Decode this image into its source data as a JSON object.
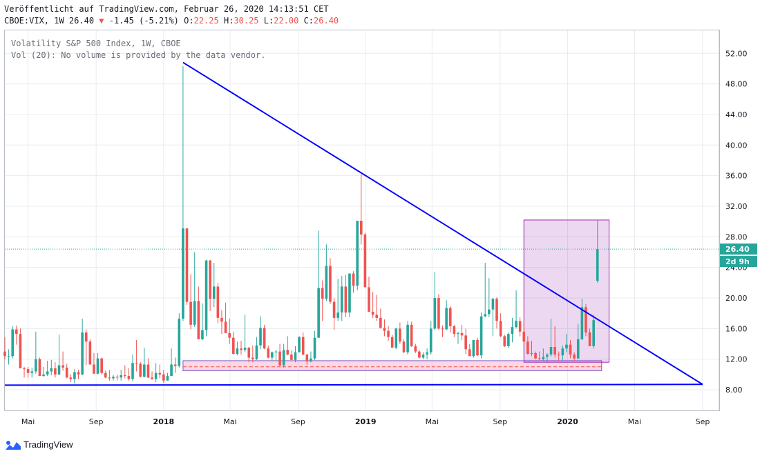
{
  "header": {
    "published": "Veröffentlicht auf TradingView.com, Februar 26, 2020 14:13:51 CET",
    "symbol_line": "CBOE:VIX, 1W 26.40",
    "change": "-1.45 (-5.21%)",
    "ohlc": {
      "o_label": "O:",
      "o": "22.25",
      "h_label": "H:",
      "h": "30.25",
      "l_label": "L:",
      "l": "22.00",
      "c_label": "C:",
      "c": "26.40"
    }
  },
  "legend": {
    "line1": "Volatility S&P 500 Index, 1W, CBOE",
    "line2": "Vol (20): No volume is provided by the data vendor."
  },
  "price_badge": "26.40",
  "time_badge": "2d 9h",
  "footer": {
    "brand": "TradingView"
  },
  "colors": {
    "up": "#26a69a",
    "down": "#ef5350",
    "trendline": "#0000ff",
    "box": "#9c27b0",
    "support": "#f48fb1",
    "grid": "#e8ecf0"
  },
  "chart_data": {
    "type": "candlestick",
    "timeframe": "1W",
    "y_ticks": [
      8,
      12,
      16,
      20,
      24,
      28,
      32,
      36,
      40,
      44,
      48,
      52
    ],
    "y_tick_labels": [
      "8.00",
      "12.00",
      "16.00",
      "20.00",
      "24.00",
      "28.00",
      "32.00",
      "36.00",
      "40.00",
      "44.00",
      "48.00",
      "52.00"
    ],
    "ylim": [
      5.3,
      55
    ],
    "xlim": [
      "2017-03-20",
      "2020-10-01"
    ],
    "x_ticks": [
      {
        "date": "2017-05-01",
        "label": "Mai"
      },
      {
        "date": "2017-09-01",
        "label": "Sep"
      },
      {
        "date": "2018-01-01",
        "label": "2018"
      },
      {
        "date": "2018-05-01",
        "label": "Mai"
      },
      {
        "date": "2018-09-01",
        "label": "Sep"
      },
      {
        "date": "2019-01-01",
        "label": "2019"
      },
      {
        "date": "2019-05-01",
        "label": "Mai"
      },
      {
        "date": "2019-09-01",
        "label": "Sep"
      },
      {
        "date": "2020-01-01",
        "label": "2020"
      },
      {
        "date": "2020-05-01",
        "label": "Mai"
      },
      {
        "date": "2020-09-01",
        "label": "Sep"
      }
    ],
    "last_price": 26.4,
    "candles": [
      [
        "2017-03-20",
        13.0,
        14.9,
        12.0,
        12.4
      ],
      [
        "2017-03-27",
        12.4,
        13.3,
        11.3,
        12.4
      ],
      [
        "2017-04-03",
        12.4,
        16.3,
        12.1,
        15.9
      ],
      [
        "2017-04-10",
        15.9,
        16.4,
        13.9,
        15.3
      ],
      [
        "2017-04-17",
        15.3,
        16.0,
        10.8,
        10.8
      ],
      [
        "2017-04-24",
        10.8,
        11.0,
        9.6,
        10.7
      ],
      [
        "2017-05-01",
        10.7,
        11.0,
        9.6,
        10.2
      ],
      [
        "2017-05-08",
        10.2,
        10.9,
        9.6,
        10.4
      ],
      [
        "2017-05-15",
        10.4,
        15.6,
        10.1,
        12.0
      ],
      [
        "2017-05-22",
        12.0,
        12.2,
        9.8,
        9.8
      ],
      [
        "2017-05-29",
        9.8,
        11.0,
        9.7,
        10.0
      ],
      [
        "2017-06-05",
        10.0,
        11.8,
        9.8,
        10.4
      ],
      [
        "2017-06-12",
        10.4,
        11.9,
        9.9,
        10.8
      ],
      [
        "2017-06-19",
        10.8,
        11.6,
        9.6,
        10.0
      ],
      [
        "2017-06-26",
        10.0,
        15.2,
        9.9,
        11.2
      ],
      [
        "2017-07-03",
        11.2,
        13.0,
        10.5,
        10.9
      ],
      [
        "2017-07-10",
        10.9,
        11.4,
        9.5,
        9.6
      ],
      [
        "2017-07-17",
        9.6,
        10.0,
        9.0,
        9.4
      ],
      [
        "2017-07-24",
        9.4,
        10.7,
        8.8,
        10.3
      ],
      [
        "2017-07-31",
        10.3,
        10.6,
        9.4,
        10.0
      ],
      [
        "2017-08-07",
        10.0,
        17.3,
        9.9,
        15.5
      ],
      [
        "2017-08-14",
        15.5,
        15.9,
        11.2,
        14.3
      ],
      [
        "2017-08-21",
        14.3,
        14.6,
        11.3,
        11.3
      ],
      [
        "2017-08-28",
        11.3,
        12.8,
        10.1,
        10.1
      ],
      [
        "2017-09-04",
        10.1,
        12.8,
        10.0,
        12.1
      ],
      [
        "2017-09-11",
        12.1,
        12.2,
        10.0,
        10.2
      ],
      [
        "2017-09-18",
        10.2,
        10.5,
        9.5,
        9.6
      ],
      [
        "2017-09-25",
        9.6,
        10.6,
        9.2,
        9.5
      ],
      [
        "2017-10-02",
        9.5,
        9.9,
        9.2,
        9.7
      ],
      [
        "2017-10-09",
        9.7,
        10.0,
        9.2,
        9.6
      ],
      [
        "2017-10-16",
        9.6,
        10.6,
        9.2,
        9.9
      ],
      [
        "2017-10-23",
        9.9,
        11.2,
        9.5,
        9.8
      ],
      [
        "2017-10-30",
        9.8,
        10.8,
        9.2,
        9.4
      ],
      [
        "2017-11-06",
        9.4,
        12.6,
        9.1,
        11.5
      ],
      [
        "2017-11-13",
        11.5,
        14.5,
        10.4,
        11.4
      ],
      [
        "2017-11-20",
        11.4,
        11.6,
        9.6,
        9.7
      ],
      [
        "2017-11-27",
        9.7,
        13.5,
        9.6,
        11.3
      ],
      [
        "2017-12-04",
        11.3,
        12.1,
        9.5,
        9.6
      ],
      [
        "2017-12-11",
        9.6,
        10.4,
        9.3,
        9.4
      ],
      [
        "2017-12-18",
        9.4,
        11.5,
        9.0,
        10.2
      ],
      [
        "2017-12-25",
        10.2,
        11.3,
        9.5,
        10.0
      ],
      [
        "2018-01-01",
        10.0,
        10.6,
        8.9,
        9.2
      ],
      [
        "2018-01-08",
        9.2,
        10.2,
        9.2,
        9.8
      ],
      [
        "2018-01-15",
        9.8,
        13.4,
        9.8,
        11.3
      ],
      [
        "2018-01-22",
        11.3,
        12.2,
        10.2,
        11.1
      ],
      [
        "2018-01-29",
        11.1,
        18.0,
        10.9,
        17.3
      ],
      [
        "2018-02-05",
        17.3,
        50.3,
        17.0,
        29.1
      ],
      [
        "2018-02-12",
        29.1,
        29.1,
        19.1,
        19.5
      ],
      [
        "2018-02-19",
        19.5,
        23.1,
        15.9,
        16.5
      ],
      [
        "2018-02-26",
        16.5,
        26.0,
        16.2,
        19.6
      ],
      [
        "2018-03-05",
        19.6,
        21.5,
        14.6,
        14.6
      ],
      [
        "2018-03-12",
        14.6,
        19.3,
        14.5,
        15.8
      ],
      [
        "2018-03-19",
        15.8,
        25.0,
        15.0,
        24.9
      ],
      [
        "2018-03-26",
        24.9,
        25.0,
        18.3,
        19.9
      ],
      [
        "2018-04-02",
        19.9,
        24.6,
        18.8,
        21.5
      ],
      [
        "2018-04-09",
        21.5,
        22.0,
        16.7,
        17.4
      ],
      [
        "2018-04-16",
        17.4,
        18.4,
        15.3,
        16.9
      ],
      [
        "2018-04-23",
        16.9,
        19.4,
        15.4,
        15.4
      ],
      [
        "2018-04-30",
        15.4,
        17.3,
        14.0,
        14.8
      ],
      [
        "2018-05-07",
        14.8,
        15.6,
        12.6,
        12.7
      ],
      [
        "2018-05-14",
        12.7,
        14.3,
        12.5,
        13.4
      ],
      [
        "2018-05-21",
        13.4,
        14.4,
        12.6,
        13.2
      ],
      [
        "2018-05-28",
        13.2,
        17.8,
        12.9,
        13.5
      ],
      [
        "2018-06-04",
        13.5,
        13.6,
        11.6,
        12.2
      ],
      [
        "2018-06-11",
        12.2,
        13.8,
        11.6,
        12.0
      ],
      [
        "2018-06-18",
        12.0,
        14.9,
        11.9,
        13.8
      ],
      [
        "2018-06-25",
        13.8,
        17.6,
        13.3,
        16.1
      ],
      [
        "2018-07-02",
        16.1,
        16.5,
        13.3,
        13.4
      ],
      [
        "2018-07-09",
        13.4,
        13.8,
        12.1,
        12.2
      ],
      [
        "2018-07-16",
        12.2,
        13.0,
        11.8,
        12.9
      ],
      [
        "2018-07-23",
        12.9,
        13.2,
        11.8,
        13.0
      ],
      [
        "2018-07-30",
        13.0,
        14.0,
        11.0,
        11.2
      ],
      [
        "2018-08-06",
        11.2,
        14.0,
        10.9,
        13.2
      ],
      [
        "2018-08-13",
        13.2,
        15.0,
        12.5,
        12.6
      ],
      [
        "2018-08-20",
        12.6,
        13.1,
        11.9,
        11.9
      ],
      [
        "2018-08-27",
        11.9,
        13.7,
        11.6,
        12.9
      ],
      [
        "2018-09-03",
        12.9,
        15.0,
        12.9,
        14.9
      ],
      [
        "2018-09-10",
        14.9,
        15.5,
        12.5,
        12.6
      ],
      [
        "2018-09-17",
        12.6,
        12.7,
        11.3,
        11.7
      ],
      [
        "2018-09-24",
        11.7,
        13.0,
        11.6,
        12.1
      ],
      [
        "2018-10-01",
        12.1,
        15.7,
        11.9,
        14.8
      ],
      [
        "2018-10-08",
        14.8,
        28.8,
        14.8,
        21.3
      ],
      [
        "2018-10-15",
        21.3,
        22.3,
        17.0,
        19.9
      ],
      [
        "2018-10-22",
        19.9,
        27.0,
        19.6,
        24.2
      ],
      [
        "2018-10-29",
        24.2,
        25.2,
        19.2,
        19.5
      ],
      [
        "2018-11-05",
        19.5,
        20.0,
        15.8,
        17.4
      ],
      [
        "2018-11-12",
        17.4,
        22.5,
        17.0,
        18.1
      ],
      [
        "2018-11-19",
        18.1,
        22.9,
        17.0,
        21.5
      ],
      [
        "2018-11-26",
        21.5,
        23.0,
        17.5,
        18.1
      ],
      [
        "2018-12-03",
        18.1,
        23.2,
        17.5,
        23.2
      ],
      [
        "2018-12-10",
        23.2,
        23.5,
        20.7,
        21.6
      ],
      [
        "2018-12-17",
        21.6,
        30.1,
        21.0,
        30.1
      ],
      [
        "2018-12-24",
        30.1,
        36.2,
        27.0,
        28.3
      ],
      [
        "2018-12-31",
        28.3,
        28.5,
        21.4,
        21.4
      ],
      [
        "2019-01-07",
        21.4,
        22.8,
        18.2,
        18.2
      ],
      [
        "2019-01-14",
        18.2,
        20.8,
        17.4,
        17.8
      ],
      [
        "2019-01-21",
        17.8,
        20.4,
        17.0,
        17.4
      ],
      [
        "2019-01-28",
        17.4,
        18.6,
        16.0,
        16.1
      ],
      [
        "2019-02-04",
        16.1,
        17.2,
        15.0,
        15.7
      ],
      [
        "2019-02-11",
        15.7,
        16.3,
        14.4,
        14.9
      ],
      [
        "2019-02-18",
        14.9,
        15.2,
        13.5,
        13.5
      ],
      [
        "2019-02-25",
        13.5,
        16.1,
        13.3,
        16.0
      ],
      [
        "2019-03-04",
        16.0,
        16.8,
        14.0,
        14.3
      ],
      [
        "2019-03-11",
        14.3,
        14.6,
        12.8,
        12.9
      ],
      [
        "2019-03-18",
        12.9,
        17.0,
        12.6,
        16.5
      ],
      [
        "2019-03-25",
        16.5,
        16.9,
        13.6,
        13.7
      ],
      [
        "2019-04-01",
        13.7,
        14.0,
        12.8,
        13.0
      ],
      [
        "2019-04-08",
        13.0,
        13.2,
        12.1,
        12.2
      ],
      [
        "2019-04-15",
        12.2,
        12.9,
        12.0,
        12.6
      ],
      [
        "2019-04-22",
        12.6,
        13.4,
        12.0,
        12.9
      ],
      [
        "2019-04-29",
        12.9,
        17.0,
        12.6,
        16.0
      ],
      [
        "2019-05-06",
        16.0,
        23.4,
        15.8,
        20.0
      ],
      [
        "2019-05-13",
        20.0,
        20.5,
        15.8,
        16.0
      ],
      [
        "2019-05-20",
        16.0,
        16.4,
        14.9,
        15.9
      ],
      [
        "2019-05-27",
        15.9,
        19.7,
        15.8,
        18.7
      ],
      [
        "2019-06-03",
        18.7,
        18.9,
        15.5,
        16.3
      ],
      [
        "2019-06-10",
        16.3,
        16.5,
        14.9,
        15.3
      ],
      [
        "2019-06-17",
        15.3,
        15.6,
        14.0,
        15.4
      ],
      [
        "2019-06-24",
        15.4,
        16.5,
        14.5,
        15.1
      ],
      [
        "2019-07-01",
        15.1,
        16.0,
        12.7,
        13.3
      ],
      [
        "2019-07-08",
        13.3,
        14.0,
        12.4,
        12.4
      ],
      [
        "2019-07-15",
        12.4,
        14.5,
        12.2,
        14.5
      ],
      [
        "2019-07-22",
        14.5,
        14.8,
        12.4,
        12.5
      ],
      [
        "2019-07-29",
        12.5,
        18.1,
        12.1,
        17.6
      ],
      [
        "2019-08-05",
        17.6,
        24.6,
        17.5,
        17.9
      ],
      [
        "2019-08-12",
        17.9,
        22.6,
        17.5,
        18.5
      ],
      [
        "2019-08-19",
        18.5,
        20.0,
        15.0,
        19.9
      ],
      [
        "2019-08-26",
        19.9,
        20.1,
        16.0,
        17.0
      ],
      [
        "2019-09-02",
        17.0,
        18.0,
        14.9,
        15.0
      ],
      [
        "2019-09-09",
        15.0,
        15.2,
        13.6,
        13.7
      ],
      [
        "2019-09-16",
        13.7,
        15.5,
        13.5,
        15.3
      ],
      [
        "2019-09-23",
        15.3,
        17.4,
        14.2,
        16.2
      ],
      [
        "2019-09-30",
        16.2,
        21.0,
        16.0,
        17.0
      ],
      [
        "2019-10-07",
        17.0,
        17.5,
        15.0,
        15.6
      ],
      [
        "2019-10-14",
        15.6,
        17.0,
        13.5,
        14.3
      ],
      [
        "2019-10-21",
        14.3,
        15.0,
        12.6,
        12.7
      ],
      [
        "2019-10-28",
        12.7,
        14.4,
        12.4,
        12.8
      ],
      [
        "2019-11-04",
        12.8,
        13.0,
        12.0,
        12.1
      ],
      [
        "2019-11-11",
        12.1,
        13.0,
        11.9,
        12.0
      ],
      [
        "2019-11-18",
        12.0,
        13.4,
        11.8,
        12.3
      ],
      [
        "2019-11-25",
        12.3,
        12.8,
        11.5,
        12.6
      ],
      [
        "2019-12-02",
        12.6,
        17.3,
        12.3,
        13.6
      ],
      [
        "2019-12-09",
        13.6,
        16.3,
        12.2,
        12.6
      ],
      [
        "2019-12-16",
        12.6,
        13.0,
        11.8,
        12.5
      ],
      [
        "2019-12-23",
        12.5,
        13.8,
        11.8,
        13.4
      ],
      [
        "2019-12-30",
        13.4,
        15.3,
        12.9,
        13.9
      ],
      [
        "2020-01-06",
        13.9,
        14.5,
        12.1,
        12.6
      ],
      [
        "2020-01-13",
        12.6,
        12.9,
        11.8,
        12.1
      ],
      [
        "2020-01-20",
        12.1,
        16.6,
        12.0,
        14.6
      ],
      [
        "2020-01-27",
        14.6,
        19.9,
        14.5,
        18.8
      ],
      [
        "2020-02-03",
        18.8,
        19.2,
        15.0,
        15.5
      ],
      [
        "2020-02-10",
        15.5,
        16.0,
        13.7,
        13.7
      ],
      [
        "2020-02-17",
        13.7,
        17.8,
        13.4,
        17.1
      ],
      [
        "2020-02-24",
        22.25,
        30.25,
        22.0,
        26.4
      ]
    ],
    "trendlines": [
      {
        "name": "descending",
        "from": [
          "2018-02-05",
          50.8
        ],
        "to": [
          "2020-09-01",
          8.7
        ]
      },
      {
        "name": "horizontal",
        "from": [
          "2017-03-20",
          8.6
        ],
        "to": [
          "2020-09-01",
          8.7
        ]
      }
    ],
    "rectangle": {
      "from": [
        "2019-10-14",
        11.6
      ],
      "to": [
        "2020-03-16",
        30.2
      ]
    },
    "support_zone": {
      "from": [
        "2018-02-05",
        10.5
      ],
      "to": [
        "2020-02-24",
        11.8
      ],
      "dashed_level": 11.0
    }
  }
}
